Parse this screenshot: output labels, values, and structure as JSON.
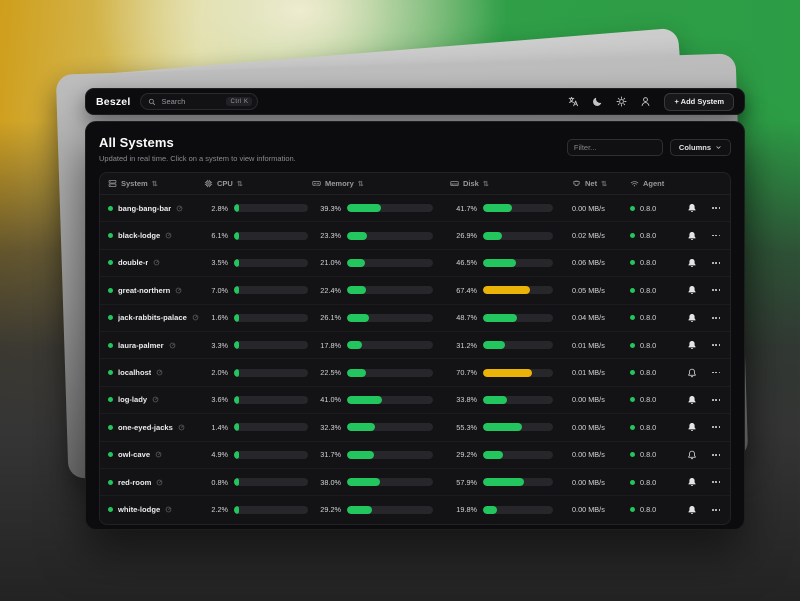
{
  "navbar": {
    "brand": "Beszel",
    "search_placeholder": "Search",
    "search_shortcut": "Ctrl K",
    "icons": [
      "translate-icon",
      "theme-moon-icon",
      "settings-gear-icon",
      "user-icon"
    ],
    "add_system_label": "+ Add System"
  },
  "panel": {
    "title": "All Systems",
    "subtitle": "Updated in real time. Click on a system to view information.",
    "filter_placeholder": "Filter...",
    "columns_label": "Columns"
  },
  "table": {
    "columns": [
      {
        "label": "System",
        "icon": "server-icon",
        "sortable": true
      },
      {
        "label": "CPU",
        "icon": "cpu-icon",
        "sortable": true
      },
      {
        "label": "Memory",
        "icon": "memory-icon",
        "sortable": true
      },
      {
        "label": "Disk",
        "icon": "hard-drive-icon",
        "sortable": true
      },
      {
        "label": "Net",
        "icon": "ethernet-icon",
        "sortable": true
      },
      {
        "label": "Agent",
        "icon": "wifi-icon",
        "sortable": false
      }
    ],
    "rows": [
      {
        "name": "bang-bang-bar",
        "status": "up",
        "cpu": "2.8%",
        "memory": "39.3%",
        "disk": "41.7%",
        "disk_status": "ok",
        "net": "0.00 MB/s",
        "agent": "0.8.0",
        "bell": "filled"
      },
      {
        "name": "black-lodge",
        "status": "up",
        "cpu": "6.1%",
        "memory": "23.3%",
        "disk": "26.9%",
        "disk_status": "ok",
        "net": "0.02 MB/s",
        "agent": "0.8.0",
        "bell": "filled"
      },
      {
        "name": "double-r",
        "status": "up",
        "cpu": "3.5%",
        "memory": "21.0%",
        "disk": "46.5%",
        "disk_status": "ok",
        "net": "0.06 MB/s",
        "agent": "0.8.0",
        "bell": "filled"
      },
      {
        "name": "great-northern",
        "status": "up",
        "cpu": "7.0%",
        "memory": "22.4%",
        "disk": "67.4%",
        "disk_status": "warning",
        "net": "0.05 MB/s",
        "agent": "0.8.0",
        "bell": "filled"
      },
      {
        "name": "jack-rabbits-palace",
        "status": "up",
        "cpu": "1.6%",
        "memory": "26.1%",
        "disk": "48.7%",
        "disk_status": "ok",
        "net": "0.04 MB/s",
        "agent": "0.8.0",
        "bell": "filled"
      },
      {
        "name": "laura-palmer",
        "status": "up",
        "cpu": "3.3%",
        "memory": "17.8%",
        "disk": "31.2%",
        "disk_status": "ok",
        "net": "0.01 MB/s",
        "agent": "0.8.0",
        "bell": "filled"
      },
      {
        "name": "localhost",
        "status": "up",
        "cpu": "2.0%",
        "memory": "22.5%",
        "disk": "70.7%",
        "disk_status": "warning",
        "net": "0.01 MB/s",
        "agent": "0.8.0",
        "bell": "outline"
      },
      {
        "name": "log-lady",
        "status": "up",
        "cpu": "3.6%",
        "memory": "41.0%",
        "disk": "33.8%",
        "disk_status": "ok",
        "net": "0.00 MB/s",
        "agent": "0.8.0",
        "bell": "filled"
      },
      {
        "name": "one-eyed-jacks",
        "status": "up",
        "cpu": "1.4%",
        "memory": "32.3%",
        "disk": "55.3%",
        "disk_status": "ok",
        "net": "0.00 MB/s",
        "agent": "0.8.0",
        "bell": "filled"
      },
      {
        "name": "owl-cave",
        "status": "up",
        "cpu": "4.9%",
        "memory": "31.7%",
        "disk": "29.2%",
        "disk_status": "ok",
        "net": "0.00 MB/s",
        "agent": "0.8.0",
        "bell": "outline"
      },
      {
        "name": "red-room",
        "status": "up",
        "cpu": "0.8%",
        "memory": "38.0%",
        "disk": "57.9%",
        "disk_status": "ok",
        "net": "0.00 MB/s",
        "agent": "0.8.0",
        "bell": "filled"
      },
      {
        "name": "white-lodge",
        "status": "up",
        "cpu": "2.2%",
        "memory": "29.2%",
        "disk": "19.8%",
        "disk_status": "ok",
        "net": "0.00 MB/s",
        "agent": "0.8.0",
        "bell": "filled"
      }
    ]
  },
  "colors": {
    "accent_green": "#22c55e",
    "warning_yellow": "#eab308"
  }
}
